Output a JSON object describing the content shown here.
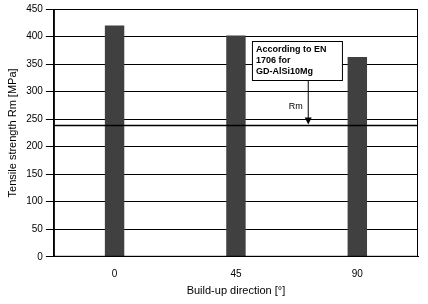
{
  "chart_data": {
    "type": "bar",
    "x_label": "Build-up direction [°]",
    "y_label": "Tensile strength Rm [MPa]",
    "categories": [
      "0",
      "45",
      "90"
    ],
    "values": [
      420,
      402,
      363
    ],
    "color": "#404040",
    "ylim": [
      0,
      450
    ],
    "yticks": [
      0,
      50,
      100,
      150,
      200,
      250,
      300,
      350,
      400,
      450
    ],
    "grid": true,
    "reference_line": {
      "value": 240,
      "label": "Rm",
      "note": "According to EN 1706 for GD-AlSi10Mg"
    }
  }
}
